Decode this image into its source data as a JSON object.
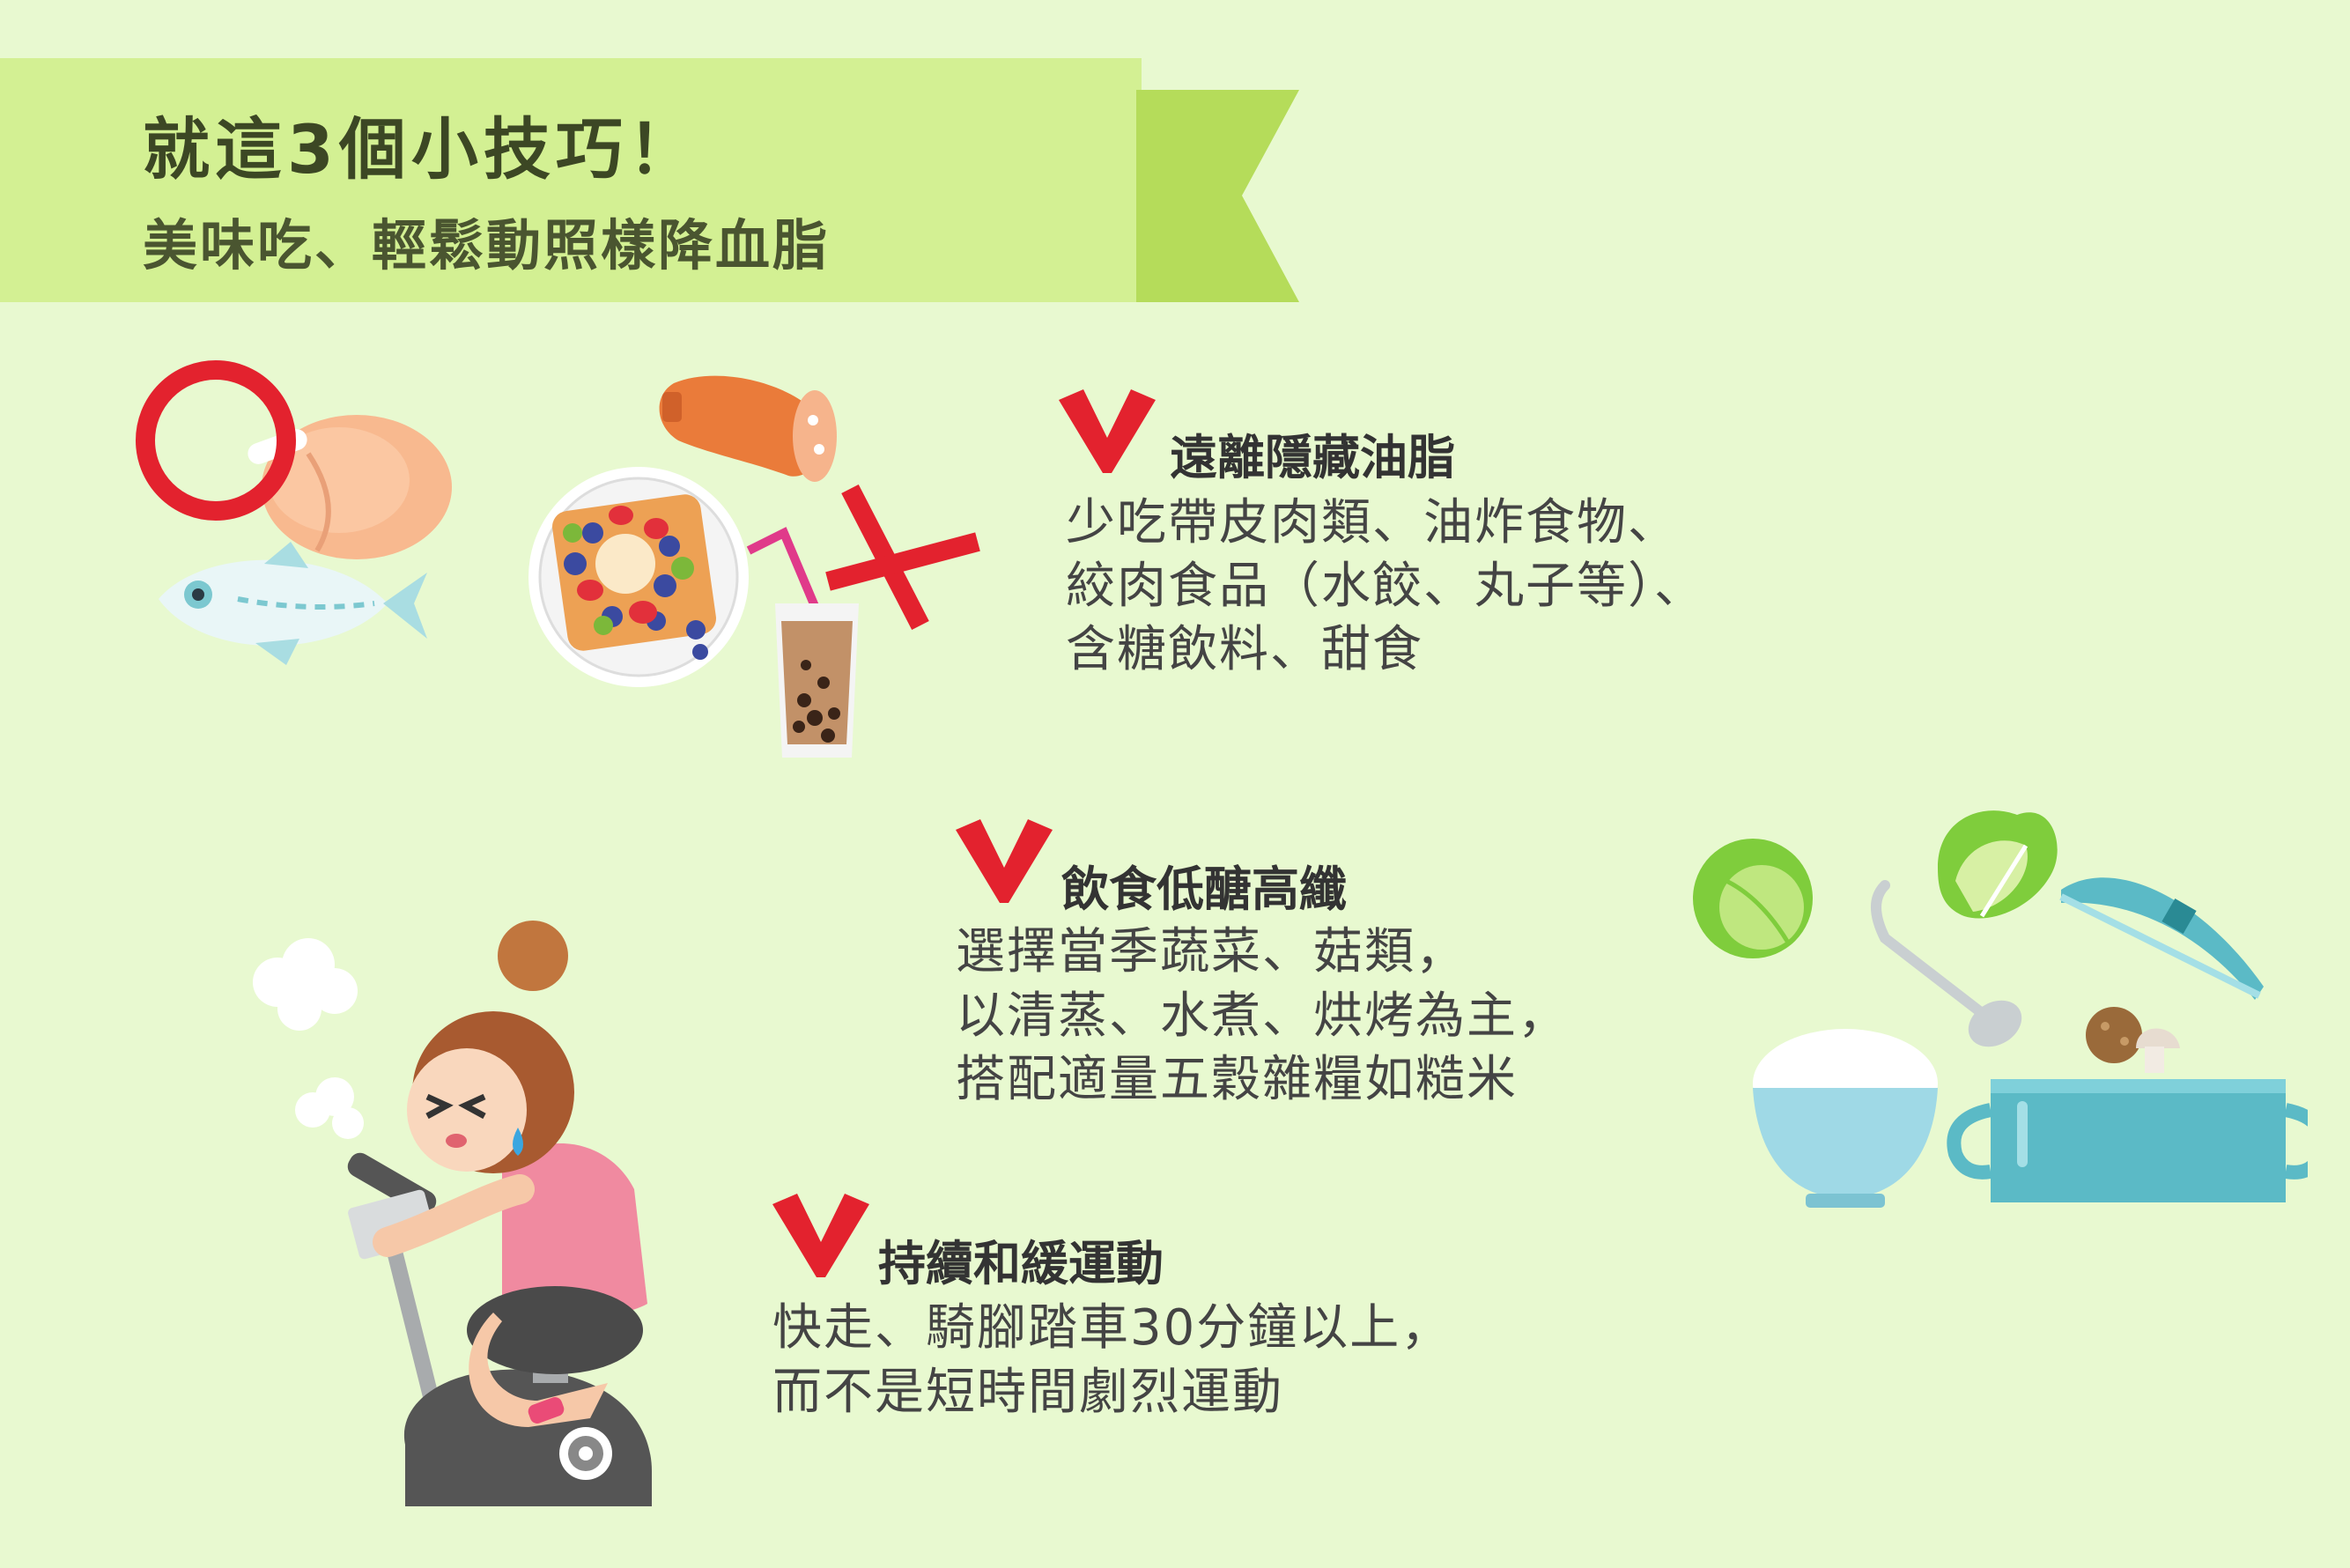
{
  "banner": {
    "title": "就這3個小技巧！",
    "subtitle": "美味吃、輕鬆動照樣降血脂"
  },
  "tips": [
    {
      "title": "遠離隱藏油脂",
      "lines": [
        "少吃帶皮肉類、油炸食物、",
        "絞肉食品（水餃、丸子等）、",
        "含糖飲料、甜食"
      ]
    },
    {
      "title": "飲食低醣高纖",
      "lines": [
        "選擇當季蔬菜、菇類，",
        "以清蒸、水煮、烘烤為主，",
        "搭配適量五穀雜糧如糙米"
      ]
    },
    {
      "title": "持續和緩運動",
      "lines": [
        "快走、騎腳踏車30分鐘以上，",
        "而不是短時間劇烈運動"
      ]
    }
  ],
  "colors": {
    "background": "#e8f9d0",
    "banner": "#d3f093",
    "banner_tail": "#b5dc5a",
    "check": "#e3222e",
    "ok_circle": "#e3222e",
    "no_cross": "#e3222e"
  },
  "icons": [
    "ok-circle-icon",
    "no-cross-icon",
    "check-icon"
  ]
}
